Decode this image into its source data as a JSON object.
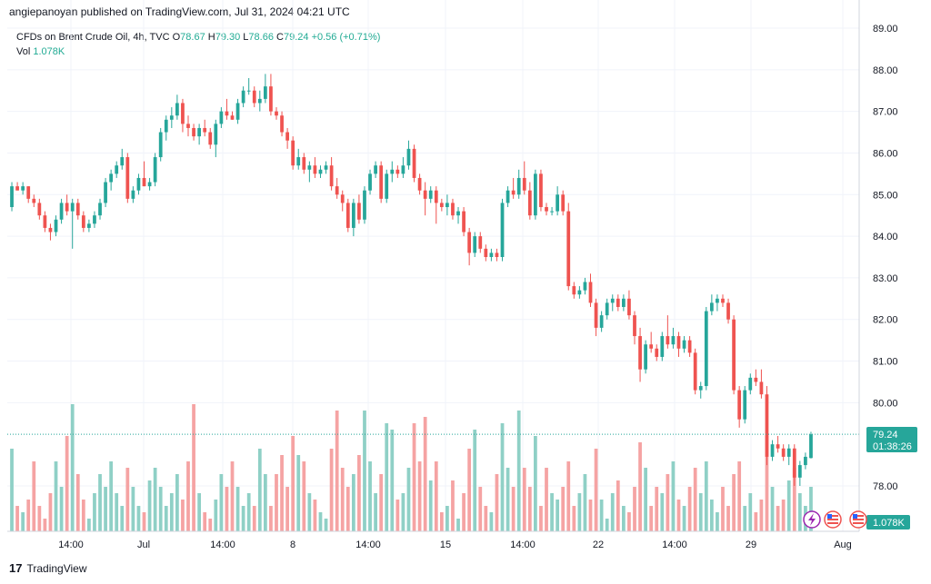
{
  "header": {
    "published": "angiepanoyan published on TradingView.com, Jul 31, 2024 04:21 UTC"
  },
  "legend": {
    "symbol": "CFDs on Brent Crude Oil, 4h, TVC",
    "open_label": "O",
    "open": "78.67",
    "high_label": "H",
    "high": "79.30",
    "low_label": "L",
    "low": "78.66",
    "close_label": "C",
    "close": "79.24",
    "change": "+0.56 (+0.71%)",
    "vol_label": "Vol",
    "vol": "1.078K"
  },
  "price_tag": {
    "price": "79.24",
    "countdown": "01:38:26"
  },
  "volume_tag": "1.078K",
  "footer": {
    "brand": "TradingView"
  },
  "colors": {
    "up": "#26a69a",
    "down": "#ef5350",
    "vol_up": "#8fd0c6",
    "vol_down": "#f5a3a3",
    "grid": "#f0f3fa",
    "axis_text": "#131722"
  },
  "chart_data": {
    "type": "candlestick",
    "title": "CFDs on Brent Crude Oil, 4h, TVC",
    "timeframe": "4h",
    "y_axis": {
      "position": "right",
      "range": [
        77.4,
        89.2
      ],
      "ticks": [
        "89.00",
        "88.00",
        "87.00",
        "86.00",
        "85.00",
        "84.00",
        "83.00",
        "82.00",
        "81.00",
        "80.00",
        "78.00"
      ]
    },
    "x_axis": {
      "ticks": [
        "14:00",
        "Jul",
        "14:00",
        "8",
        "14:00",
        "15",
        "14:00",
        "22",
        "14:00",
        "29",
        "Aug"
      ]
    },
    "grid": true,
    "last_price": 79.24,
    "volume_last": "1.078K",
    "candles": [
      {
        "o": 84.7,
        "h": 85.3,
        "l": 84.6,
        "c": 85.2,
        "v": 0.65
      },
      {
        "o": 85.2,
        "h": 85.3,
        "l": 85.1,
        "c": 85.1,
        "v": 0.2
      },
      {
        "o": 85.1,
        "h": 85.3,
        "l": 85.0,
        "c": 85.2,
        "v": 0.15
      },
      {
        "o": 85.2,
        "h": 85.2,
        "l": 84.8,
        "c": 84.9,
        "v": 0.25
      },
      {
        "o": 84.9,
        "h": 85.0,
        "l": 84.7,
        "c": 84.8,
        "v": 0.55
      },
      {
        "o": 84.8,
        "h": 84.9,
        "l": 84.4,
        "c": 84.5,
        "v": 0.2
      },
      {
        "o": 84.5,
        "h": 84.6,
        "l": 84.1,
        "c": 84.2,
        "v": 0.1
      },
      {
        "o": 84.2,
        "h": 84.3,
        "l": 83.9,
        "c": 84.1,
        "v": 0.3
      },
      {
        "o": 84.1,
        "h": 84.5,
        "l": 84.0,
        "c": 84.4,
        "v": 0.55
      },
      {
        "o": 84.4,
        "h": 84.9,
        "l": 84.3,
        "c": 84.8,
        "v": 0.35
      },
      {
        "o": 84.8,
        "h": 85.0,
        "l": 84.5,
        "c": 84.6,
        "v": 0.75
      },
      {
        "o": 84.6,
        "h": 84.9,
        "l": 83.7,
        "c": 84.8,
        "v": 1.0
      },
      {
        "o": 84.8,
        "h": 84.9,
        "l": 84.4,
        "c": 84.5,
        "v": 0.45
      },
      {
        "o": 84.5,
        "h": 84.6,
        "l": 84.1,
        "c": 84.2,
        "v": 0.25
      },
      {
        "o": 84.2,
        "h": 84.4,
        "l": 84.1,
        "c": 84.3,
        "v": 0.1
      },
      {
        "o": 84.3,
        "h": 84.6,
        "l": 84.2,
        "c": 84.5,
        "v": 0.3
      },
      {
        "o": 84.5,
        "h": 84.9,
        "l": 84.4,
        "c": 84.8,
        "v": 0.45
      },
      {
        "o": 84.8,
        "h": 85.4,
        "l": 84.7,
        "c": 85.3,
        "v": 0.35
      },
      {
        "o": 85.3,
        "h": 85.6,
        "l": 85.1,
        "c": 85.5,
        "v": 0.55
      },
      {
        "o": 85.5,
        "h": 85.8,
        "l": 85.4,
        "c": 85.7,
        "v": 0.3
      },
      {
        "o": 85.7,
        "h": 86.1,
        "l": 85.6,
        "c": 85.9,
        "v": 0.2
      },
      {
        "o": 85.9,
        "h": 86.0,
        "l": 84.8,
        "c": 84.9,
        "v": 0.5
      },
      {
        "o": 84.9,
        "h": 85.2,
        "l": 84.8,
        "c": 85.1,
        "v": 0.35
      },
      {
        "o": 85.1,
        "h": 85.5,
        "l": 85.0,
        "c": 85.4,
        "v": 0.2
      },
      {
        "o": 85.4,
        "h": 85.8,
        "l": 85.2,
        "c": 85.2,
        "v": 0.15
      },
      {
        "o": 85.2,
        "h": 85.4,
        "l": 85.1,
        "c": 85.3,
        "v": 0.4
      },
      {
        "o": 85.3,
        "h": 86.0,
        "l": 85.2,
        "c": 85.9,
        "v": 0.5
      },
      {
        "o": 85.9,
        "h": 86.6,
        "l": 85.8,
        "c": 86.5,
        "v": 0.35
      },
      {
        "o": 86.5,
        "h": 86.9,
        "l": 86.3,
        "c": 86.8,
        "v": 0.2
      },
      {
        "o": 86.8,
        "h": 87.1,
        "l": 86.6,
        "c": 86.9,
        "v": 0.3
      },
      {
        "o": 86.9,
        "h": 87.4,
        "l": 86.8,
        "c": 87.2,
        "v": 0.45
      },
      {
        "o": 87.2,
        "h": 87.3,
        "l": 86.5,
        "c": 86.7,
        "v": 0.25
      },
      {
        "o": 86.7,
        "h": 86.9,
        "l": 86.4,
        "c": 86.6,
        "v": 0.55
      },
      {
        "o": 86.6,
        "h": 86.7,
        "l": 86.3,
        "c": 86.4,
        "v": 1.0
      },
      {
        "o": 86.4,
        "h": 86.7,
        "l": 86.2,
        "c": 86.6,
        "v": 0.3
      },
      {
        "o": 86.6,
        "h": 86.8,
        "l": 86.4,
        "c": 86.5,
        "v": 0.15
      },
      {
        "o": 86.5,
        "h": 86.6,
        "l": 86.1,
        "c": 86.2,
        "v": 0.1
      },
      {
        "o": 86.2,
        "h": 86.8,
        "l": 85.9,
        "c": 86.7,
        "v": 0.25
      },
      {
        "o": 86.7,
        "h": 87.1,
        "l": 86.6,
        "c": 87.0,
        "v": 0.45
      },
      {
        "o": 87.0,
        "h": 87.3,
        "l": 86.8,
        "c": 86.9,
        "v": 0.35
      },
      {
        "o": 86.9,
        "h": 87.0,
        "l": 86.8,
        "c": 86.8,
        "v": 0.55
      },
      {
        "o": 86.8,
        "h": 87.3,
        "l": 86.7,
        "c": 87.2,
        "v": 0.35
      },
      {
        "o": 87.2,
        "h": 87.6,
        "l": 87.1,
        "c": 87.5,
        "v": 0.2
      },
      {
        "o": 87.5,
        "h": 87.8,
        "l": 87.4,
        "c": 87.5,
        "v": 0.3
      },
      {
        "o": 87.5,
        "h": 87.6,
        "l": 87.1,
        "c": 87.2,
        "v": 0.2
      },
      {
        "o": 87.2,
        "h": 87.5,
        "l": 87.0,
        "c": 87.3,
        "v": 0.65
      },
      {
        "o": 87.3,
        "h": 87.9,
        "l": 87.2,
        "c": 87.6,
        "v": 0.45
      },
      {
        "o": 87.6,
        "h": 87.9,
        "l": 86.9,
        "c": 87.0,
        "v": 0.2
      },
      {
        "o": 87.0,
        "h": 87.1,
        "l": 86.8,
        "c": 86.9,
        "v": 0.45
      },
      {
        "o": 86.9,
        "h": 87.0,
        "l": 86.4,
        "c": 86.5,
        "v": 0.6
      },
      {
        "o": 86.5,
        "h": 86.6,
        "l": 86.1,
        "c": 86.3,
        "v": 0.35
      },
      {
        "o": 86.3,
        "h": 86.4,
        "l": 85.6,
        "c": 85.7,
        "v": 0.75
      },
      {
        "o": 85.7,
        "h": 86.1,
        "l": 85.6,
        "c": 85.9,
        "v": 0.6
      },
      {
        "o": 85.9,
        "h": 86.0,
        "l": 85.5,
        "c": 85.6,
        "v": 0.55
      },
      {
        "o": 85.6,
        "h": 85.8,
        "l": 85.3,
        "c": 85.7,
        "v": 0.3
      },
      {
        "o": 85.7,
        "h": 85.9,
        "l": 85.4,
        "c": 85.5,
        "v": 0.25
      },
      {
        "o": 85.5,
        "h": 85.7,
        "l": 85.4,
        "c": 85.6,
        "v": 0.15
      },
      {
        "o": 85.6,
        "h": 85.8,
        "l": 85.5,
        "c": 85.7,
        "v": 0.1
      },
      {
        "o": 85.7,
        "h": 85.9,
        "l": 85.1,
        "c": 85.2,
        "v": 0.65
      },
      {
        "o": 85.2,
        "h": 85.4,
        "l": 84.9,
        "c": 85.0,
        "v": 0.95
      },
      {
        "o": 85.0,
        "h": 85.1,
        "l": 84.6,
        "c": 84.8,
        "v": 0.5
      },
      {
        "o": 84.8,
        "h": 84.9,
        "l": 84.1,
        "c": 84.2,
        "v": 0.35
      },
      {
        "o": 84.2,
        "h": 84.9,
        "l": 84.0,
        "c": 84.8,
        "v": 0.45
      },
      {
        "o": 84.8,
        "h": 85.0,
        "l": 84.3,
        "c": 84.4,
        "v": 0.6
      },
      {
        "o": 84.4,
        "h": 85.2,
        "l": 84.3,
        "c": 85.1,
        "v": 0.95
      },
      {
        "o": 85.1,
        "h": 85.6,
        "l": 85.0,
        "c": 85.5,
        "v": 0.55
      },
      {
        "o": 85.5,
        "h": 85.8,
        "l": 85.4,
        "c": 85.7,
        "v": 0.3
      },
      {
        "o": 85.7,
        "h": 85.8,
        "l": 84.8,
        "c": 84.9,
        "v": 0.45
      },
      {
        "o": 84.9,
        "h": 85.6,
        "l": 84.8,
        "c": 85.5,
        "v": 0.85
      },
      {
        "o": 85.5,
        "h": 85.8,
        "l": 85.3,
        "c": 85.6,
        "v": 0.8
      },
      {
        "o": 85.6,
        "h": 85.7,
        "l": 85.4,
        "c": 85.5,
        "v": 0.25
      },
      {
        "o": 85.5,
        "h": 85.9,
        "l": 85.4,
        "c": 85.7,
        "v": 0.3
      },
      {
        "o": 85.7,
        "h": 86.3,
        "l": 85.6,
        "c": 86.1,
        "v": 0.5
      },
      {
        "o": 86.1,
        "h": 86.2,
        "l": 85.3,
        "c": 85.4,
        "v": 0.85
      },
      {
        "o": 85.4,
        "h": 85.5,
        "l": 85.0,
        "c": 85.1,
        "v": 0.55
      },
      {
        "o": 85.1,
        "h": 85.3,
        "l": 84.5,
        "c": 84.9,
        "v": 0.9
      },
      {
        "o": 84.9,
        "h": 85.2,
        "l": 84.8,
        "c": 85.1,
        "v": 0.4
      },
      {
        "o": 85.1,
        "h": 85.2,
        "l": 84.3,
        "c": 84.8,
        "v": 0.55
      },
      {
        "o": 84.8,
        "h": 84.9,
        "l": 84.6,
        "c": 84.7,
        "v": 0.15
      },
      {
        "o": 84.7,
        "h": 85.0,
        "l": 84.5,
        "c": 84.8,
        "v": 0.2
      },
      {
        "o": 84.8,
        "h": 84.9,
        "l": 84.4,
        "c": 84.5,
        "v": 0.4
      },
      {
        "o": 84.5,
        "h": 84.7,
        "l": 84.3,
        "c": 84.6,
        "v": 0.1
      },
      {
        "o": 84.6,
        "h": 84.7,
        "l": 84.0,
        "c": 84.1,
        "v": 0.3
      },
      {
        "o": 84.1,
        "h": 84.2,
        "l": 83.3,
        "c": 83.6,
        "v": 0.65
      },
      {
        "o": 83.6,
        "h": 84.1,
        "l": 83.5,
        "c": 84.0,
        "v": 0.8
      },
      {
        "o": 84.0,
        "h": 84.1,
        "l": 83.6,
        "c": 83.7,
        "v": 0.35
      },
      {
        "o": 83.7,
        "h": 83.8,
        "l": 83.4,
        "c": 83.5,
        "v": 0.2
      },
      {
        "o": 83.5,
        "h": 83.7,
        "l": 83.4,
        "c": 83.6,
        "v": 0.15
      },
      {
        "o": 83.6,
        "h": 83.7,
        "l": 83.4,
        "c": 83.5,
        "v": 0.45
      },
      {
        "o": 83.5,
        "h": 84.9,
        "l": 83.4,
        "c": 84.8,
        "v": 0.85
      },
      {
        "o": 84.8,
        "h": 85.2,
        "l": 84.7,
        "c": 85.1,
        "v": 0.5
      },
      {
        "o": 85.1,
        "h": 85.4,
        "l": 84.9,
        "c": 85.0,
        "v": 0.35
      },
      {
        "o": 85.0,
        "h": 85.6,
        "l": 84.9,
        "c": 85.4,
        "v": 0.95
      },
      {
        "o": 85.4,
        "h": 85.8,
        "l": 85.0,
        "c": 85.1,
        "v": 0.5
      },
      {
        "o": 85.1,
        "h": 85.3,
        "l": 84.4,
        "c": 84.5,
        "v": 0.35
      },
      {
        "o": 84.5,
        "h": 85.6,
        "l": 84.4,
        "c": 85.5,
        "v": 0.75
      },
      {
        "o": 85.5,
        "h": 85.6,
        "l": 84.6,
        "c": 84.7,
        "v": 0.2
      },
      {
        "o": 84.7,
        "h": 84.8,
        "l": 84.5,
        "c": 84.6,
        "v": 0.5
      },
      {
        "o": 84.6,
        "h": 84.7,
        "l": 84.5,
        "c": 84.6,
        "v": 0.3
      },
      {
        "o": 84.6,
        "h": 85.2,
        "l": 84.5,
        "c": 85.0,
        "v": 0.25
      },
      {
        "o": 85.0,
        "h": 85.1,
        "l": 84.5,
        "c": 84.6,
        "v": 0.35
      },
      {
        "o": 84.6,
        "h": 84.8,
        "l": 82.7,
        "c": 82.8,
        "v": 0.55
      },
      {
        "o": 82.8,
        "h": 82.9,
        "l": 82.5,
        "c": 82.6,
        "v": 0.2
      },
      {
        "o": 82.6,
        "h": 82.8,
        "l": 82.5,
        "c": 82.7,
        "v": 0.3
      },
      {
        "o": 82.7,
        "h": 83.0,
        "l": 82.6,
        "c": 82.9,
        "v": 0.45
      },
      {
        "o": 82.9,
        "h": 83.1,
        "l": 82.3,
        "c": 82.4,
        "v": 0.25
      },
      {
        "o": 82.4,
        "h": 82.5,
        "l": 81.6,
        "c": 81.8,
        "v": 0.65
      },
      {
        "o": 81.8,
        "h": 82.2,
        "l": 81.7,
        "c": 82.1,
        "v": 0.25
      },
      {
        "o": 82.1,
        "h": 82.5,
        "l": 82.0,
        "c": 82.4,
        "v": 0.1
      },
      {
        "o": 82.4,
        "h": 82.6,
        "l": 82.2,
        "c": 82.5,
        "v": 0.3
      },
      {
        "o": 82.5,
        "h": 82.6,
        "l": 82.2,
        "c": 82.3,
        "v": 0.4
      },
      {
        "o": 82.3,
        "h": 82.6,
        "l": 82.2,
        "c": 82.5,
        "v": 0.2
      },
      {
        "o": 82.5,
        "h": 82.7,
        "l": 82.0,
        "c": 82.1,
        "v": 0.15
      },
      {
        "o": 82.1,
        "h": 82.2,
        "l": 81.4,
        "c": 81.6,
        "v": 0.35
      },
      {
        "o": 81.6,
        "h": 81.8,
        "l": 80.5,
        "c": 80.8,
        "v": 0.7
      },
      {
        "o": 80.8,
        "h": 81.5,
        "l": 80.7,
        "c": 81.4,
        "v": 0.5
      },
      {
        "o": 81.4,
        "h": 81.7,
        "l": 81.2,
        "c": 81.3,
        "v": 0.2
      },
      {
        "o": 81.3,
        "h": 81.4,
        "l": 81.0,
        "c": 81.1,
        "v": 0.35
      },
      {
        "o": 81.1,
        "h": 81.7,
        "l": 81.0,
        "c": 81.6,
        "v": 0.3
      },
      {
        "o": 81.6,
        "h": 82.1,
        "l": 81.3,
        "c": 81.4,
        "v": 0.45
      },
      {
        "o": 81.4,
        "h": 81.8,
        "l": 81.3,
        "c": 81.6,
        "v": 0.55
      },
      {
        "o": 81.6,
        "h": 81.7,
        "l": 81.1,
        "c": 81.3,
        "v": 0.25
      },
      {
        "o": 81.3,
        "h": 81.6,
        "l": 81.2,
        "c": 81.5,
        "v": 0.2
      },
      {
        "o": 81.5,
        "h": 81.6,
        "l": 81.1,
        "c": 81.2,
        "v": 0.35
      },
      {
        "o": 81.2,
        "h": 81.3,
        "l": 80.2,
        "c": 80.3,
        "v": 0.5
      },
      {
        "o": 80.3,
        "h": 80.5,
        "l": 80.1,
        "c": 80.4,
        "v": 0.3
      },
      {
        "o": 80.4,
        "h": 82.3,
        "l": 80.3,
        "c": 82.2,
        "v": 0.55
      },
      {
        "o": 82.2,
        "h": 82.6,
        "l": 82.1,
        "c": 82.4,
        "v": 0.25
      },
      {
        "o": 82.4,
        "h": 82.6,
        "l": 82.2,
        "c": 82.5,
        "v": 0.15
      },
      {
        "o": 82.5,
        "h": 82.6,
        "l": 82.3,
        "c": 82.4,
        "v": 0.35
      },
      {
        "o": 82.4,
        "h": 82.5,
        "l": 81.9,
        "c": 82.0,
        "v": 0.2
      },
      {
        "o": 82.0,
        "h": 82.1,
        "l": 80.2,
        "c": 80.3,
        "v": 0.45
      },
      {
        "o": 80.3,
        "h": 80.4,
        "l": 79.4,
        "c": 79.6,
        "v": 0.55
      },
      {
        "o": 79.6,
        "h": 80.4,
        "l": 79.5,
        "c": 80.3,
        "v": 0.2
      },
      {
        "o": 80.3,
        "h": 80.7,
        "l": 80.2,
        "c": 80.6,
        "v": 0.3
      },
      {
        "o": 80.6,
        "h": 80.8,
        "l": 80.4,
        "c": 80.5,
        "v": 0.15
      },
      {
        "o": 80.5,
        "h": 80.8,
        "l": 80.1,
        "c": 80.2,
        "v": 0.25
      },
      {
        "o": 80.2,
        "h": 80.4,
        "l": 78.5,
        "c": 78.7,
        "v": 0.75
      },
      {
        "o": 78.7,
        "h": 79.1,
        "l": 78.6,
        "c": 79.0,
        "v": 0.35
      },
      {
        "o": 79.0,
        "h": 79.2,
        "l": 78.8,
        "c": 78.9,
        "v": 0.2
      },
      {
        "o": 78.9,
        "h": 79.0,
        "l": 78.6,
        "c": 78.7,
        "v": 0.25
      },
      {
        "o": 78.7,
        "h": 79.0,
        "l": 78.5,
        "c": 78.9,
        "v": 0.4
      },
      {
        "o": 78.9,
        "h": 79.0,
        "l": 78.0,
        "c": 78.2,
        "v": 0.5
      },
      {
        "o": 78.2,
        "h": 78.6,
        "l": 78.0,
        "c": 78.5,
        "v": 0.3
      },
      {
        "o": 78.5,
        "h": 78.8,
        "l": 78.4,
        "c": 78.7,
        "v": 0.2
      },
      {
        "o": 78.67,
        "h": 79.3,
        "l": 78.66,
        "c": 79.24,
        "v": 0.35
      }
    ]
  }
}
